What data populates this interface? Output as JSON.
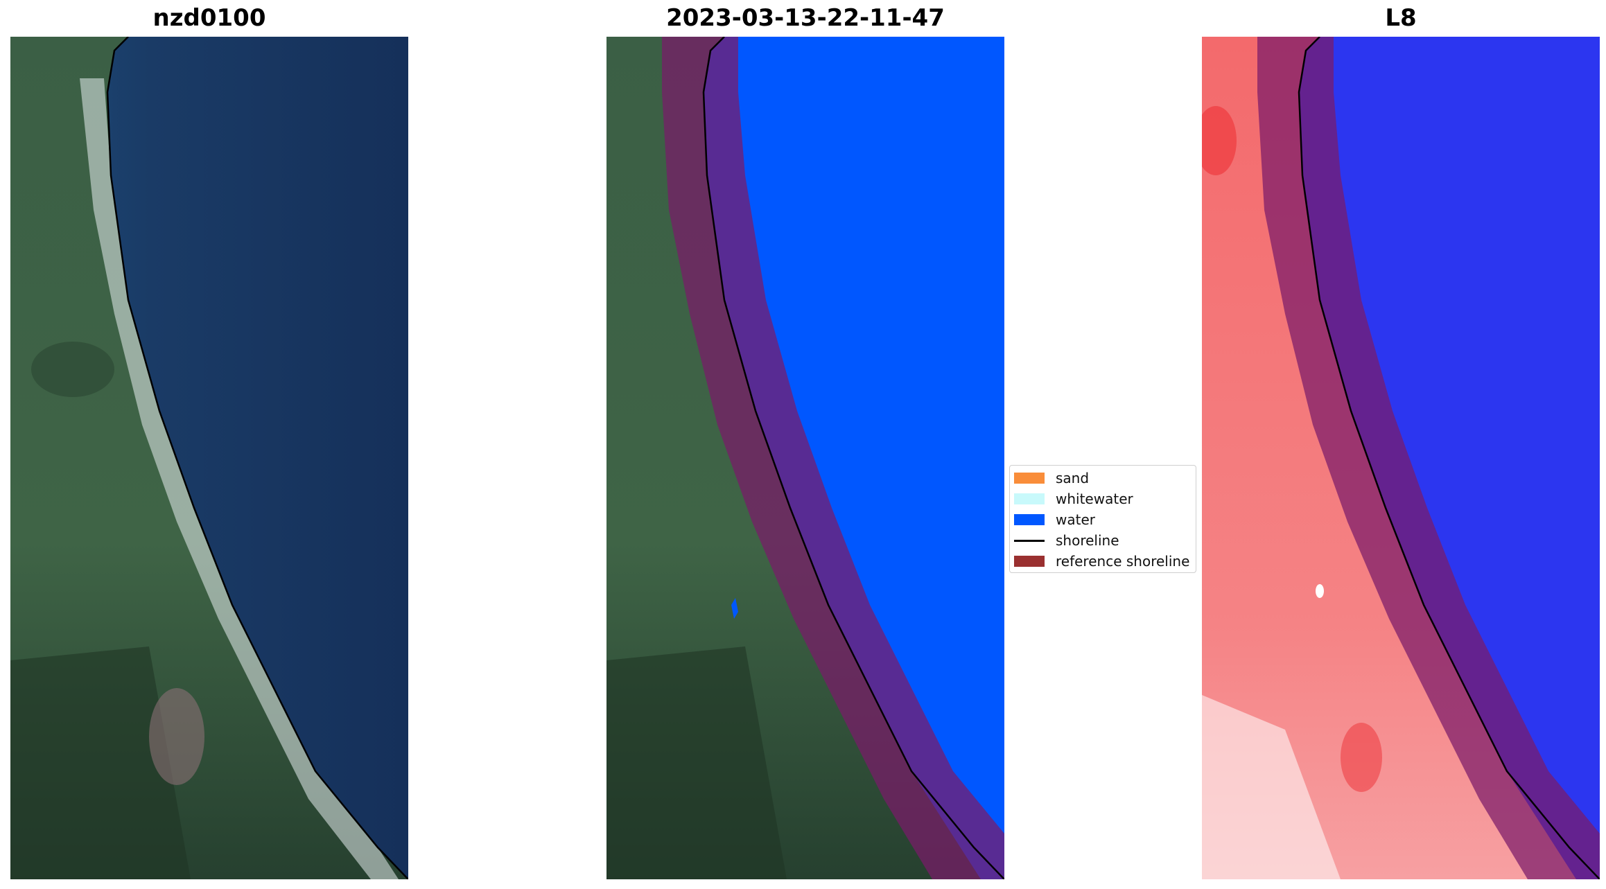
{
  "panels": [
    {
      "title": "nzd0100",
      "kind": "rgb-satellite"
    },
    {
      "title": "2023-03-13-22-11-47",
      "kind": "classified-overlay"
    },
    {
      "title": "L8",
      "kind": "index-overlay"
    }
  ],
  "legend": [
    {
      "label": "sand",
      "color": "#f98d3a",
      "type": "patch"
    },
    {
      "label": "whitewater",
      "color": "#c8f9fb",
      "type": "patch"
    },
    {
      "label": "water",
      "color": "#0057ff",
      "type": "patch"
    },
    {
      "label": "shoreline",
      "color": "#000000",
      "type": "line"
    },
    {
      "label": "reference shoreline",
      "color": "#9a3030",
      "type": "patch"
    }
  ],
  "colors": {
    "land": "#3d5a3f",
    "ocean": "#1a3a62",
    "water_class": "#0057ff",
    "reference_buffer": "#7a1a3a",
    "index_land": "#f5787a",
    "index_water": "#2c36f0"
  }
}
